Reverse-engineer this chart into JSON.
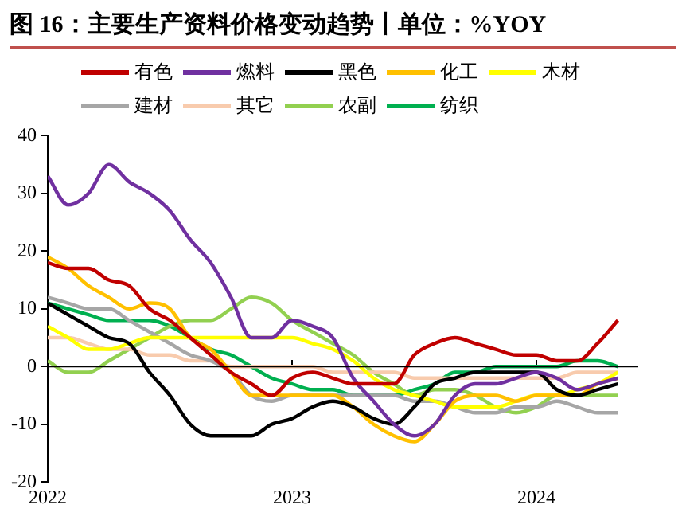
{
  "chart_data": {
    "type": "line",
    "title": "图 16：主要生产资料价格变动趋势丨单位：%YOY",
    "x": [
      "2022-01",
      "2022-02",
      "2022-03",
      "2022-04",
      "2022-05",
      "2022-06",
      "2022-07",
      "2022-08",
      "2022-09",
      "2022-10",
      "2022-11",
      "2022-12",
      "2023-01",
      "2023-02",
      "2023-03",
      "2023-04",
      "2023-05",
      "2023-06",
      "2023-07",
      "2023-08",
      "2023-09",
      "2023-10",
      "2023-11",
      "2023-12",
      "2024-01",
      "2024-02",
      "2024-03",
      "2024-04",
      "2024-05"
    ],
    "series": [
      {
        "name": "有色",
        "color": "#c00000",
        "values": [
          18,
          17,
          17,
          15,
          14,
          10,
          8,
          5,
          2,
          -1,
          -3,
          -5,
          -2,
          -1,
          -2,
          -3,
          -3,
          -3,
          2,
          4,
          5,
          4,
          3,
          2,
          2,
          1,
          1,
          4,
          8
        ]
      },
      {
        "name": "燃料",
        "color": "#7030a0",
        "values": [
          33,
          28,
          30,
          35,
          32,
          30,
          27,
          22,
          18,
          12,
          5,
          5,
          8,
          7,
          5,
          -2,
          -6,
          -10,
          -12,
          -10,
          -5,
          -3,
          -3,
          -2,
          -1,
          -2,
          -4,
          -3,
          -2
        ]
      },
      {
        "name": "黑色",
        "color": "#000000",
        "values": [
          11,
          9,
          7,
          5,
          4,
          -1,
          -5,
          -10,
          -12,
          -12,
          -12,
          -10,
          -9,
          -7,
          -6,
          -7,
          -9,
          -10,
          -7,
          -3,
          -2,
          -1,
          -1,
          -1,
          -1,
          -4,
          -5,
          -4,
          -3
        ]
      },
      {
        "name": "化工",
        "color": "#ffc000",
        "values": [
          19,
          17,
          14,
          12,
          10,
          11,
          10,
          5,
          3,
          -1,
          -5,
          -5,
          -5,
          -5,
          -5,
          -7,
          -10,
          -12,
          -13,
          -10,
          -6,
          -5,
          -5,
          -6,
          -5,
          -5,
          -5,
          -3,
          -2
        ]
      },
      {
        "name": "木材",
        "color": "#ffff00",
        "values": [
          7,
          5,
          3,
          3,
          4,
          5,
          5,
          5,
          5,
          5,
          5,
          5,
          5,
          4,
          3,
          1,
          -2,
          -4,
          -5,
          -6,
          -7,
          -7,
          -7,
          -6,
          -5,
          -5,
          -4,
          -3,
          -1
        ]
      },
      {
        "name": "建材",
        "color": "#a6a6a6",
        "values": [
          12,
          11,
          10,
          10,
          8,
          6,
          4,
          2,
          1,
          -1,
          -5,
          -6,
          -5,
          -5,
          -5,
          -5,
          -5,
          -5,
          -6,
          -6,
          -7,
          -8,
          -8,
          -7,
          -7,
          -6,
          -7,
          -8,
          -8
        ]
      },
      {
        "name": "其它",
        "color": "#f8cbad",
        "values": [
          5,
          5,
          4,
          3,
          3,
          2,
          2,
          1,
          1,
          0,
          0,
          0,
          0,
          0,
          -1,
          -1,
          -1,
          -1,
          -2,
          -2,
          -2,
          -2,
          -2,
          -2,
          -2,
          -2,
          -1,
          -1,
          -1
        ]
      },
      {
        "name": "农副",
        "color": "#92d050",
        "values": [
          1,
          -1,
          -1,
          1,
          3,
          5,
          7,
          8,
          8,
          10,
          12,
          11,
          8,
          6,
          4,
          2,
          -1,
          -3,
          -5,
          -4,
          -4,
          -5,
          -7,
          -8,
          -7,
          -5,
          -5,
          -5,
          -5
        ]
      },
      {
        "name": "纺织",
        "color": "#00b050",
        "values": [
          11,
          10,
          9,
          8,
          8,
          8,
          7,
          5,
          3,
          2,
          0,
          -2,
          -3,
          -4,
          -4,
          -5,
          -5,
          -5,
          -4,
          -3,
          -1,
          -1,
          0,
          0,
          0,
          0,
          1,
          1,
          0
        ]
      }
    ],
    "xlim": [
      "2022-01",
      "2024-06"
    ],
    "xticks": [
      "2022",
      "2023",
      "2024"
    ],
    "ylim": [
      -20,
      40
    ],
    "yticks": [
      -20,
      -10,
      0,
      10,
      20,
      30,
      40
    ],
    "ref_lines": [
      {
        "axis": "y",
        "value": 0,
        "color": "#000000"
      }
    ],
    "legend": "top",
    "grid": false
  }
}
